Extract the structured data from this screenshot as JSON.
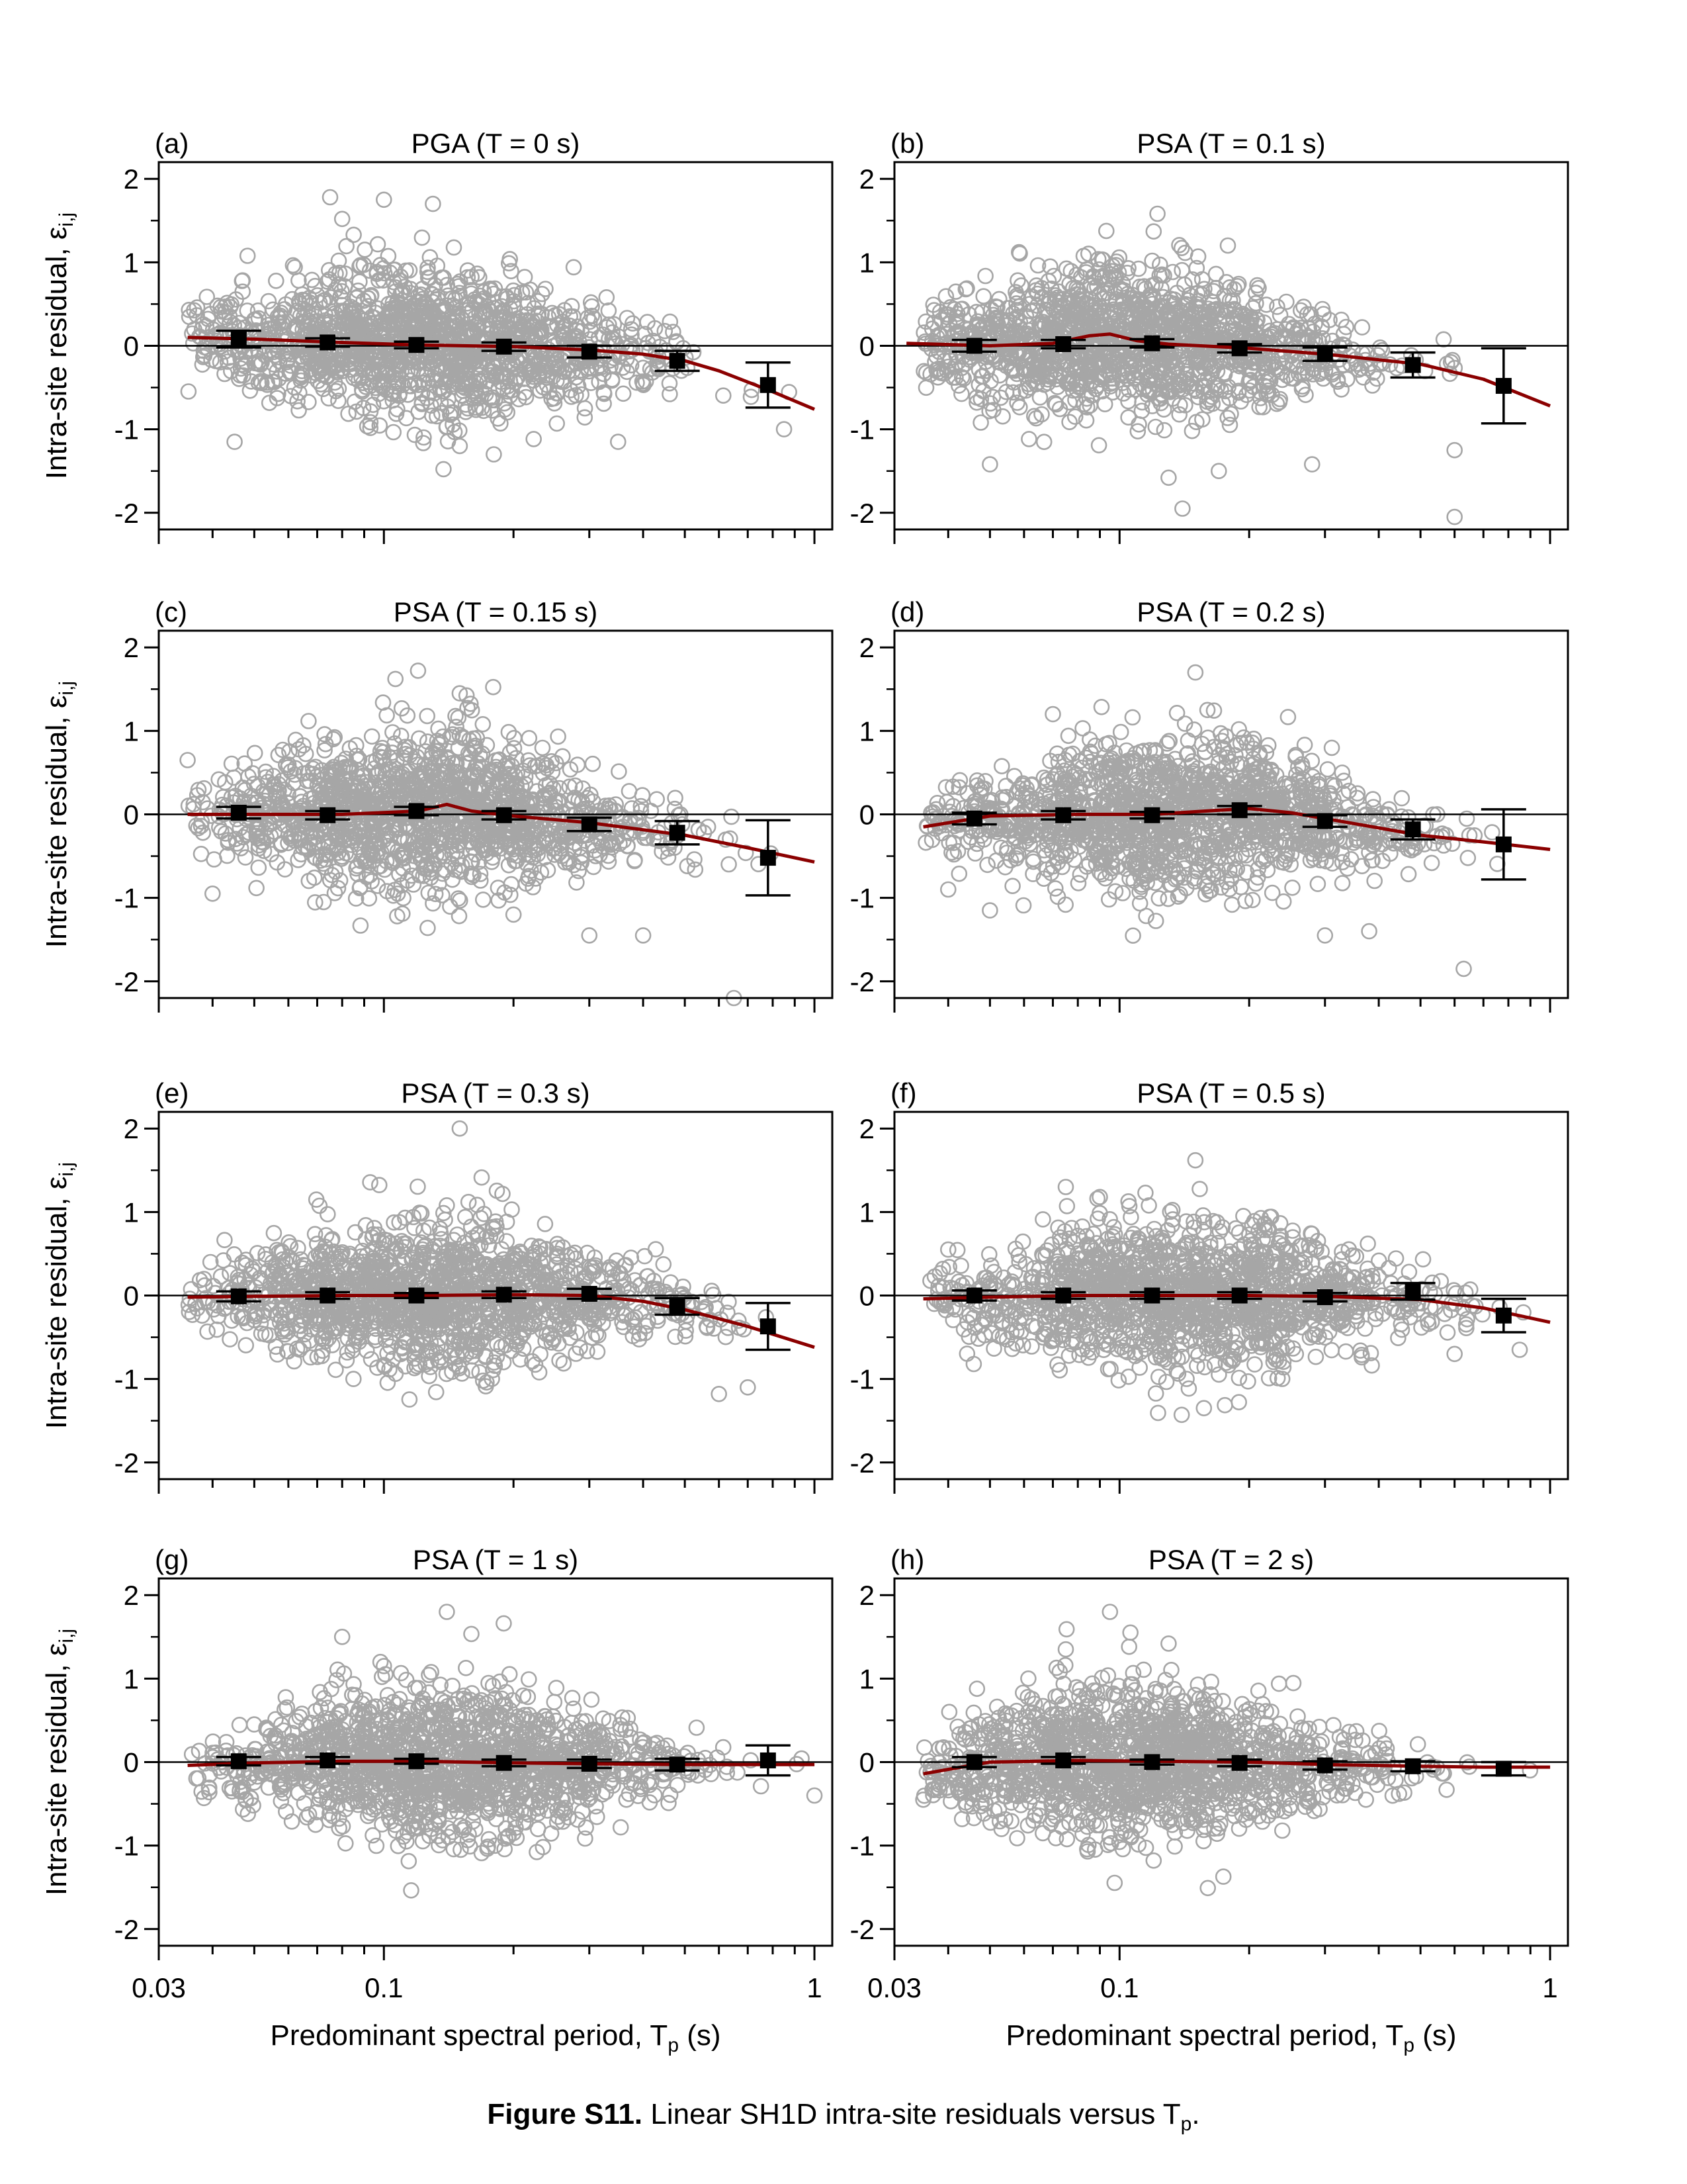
{
  "figure": {
    "caption_bold": "Figure S11.",
    "caption_text": " Linear SH1D intra-site residuals versus T",
    "caption_sub": "p",
    "caption_end": ".",
    "xlabel_main": "Predominant spectral period, T",
    "xlabel_sub": "p",
    "xlabel_unit": " (s)",
    "ylabel_main": "Intra-site residual, ε",
    "ylabel_sub": "i,j",
    "x_tick_labels": [
      "0.03",
      "0.1",
      "1"
    ],
    "y_tick_labels": [
      "-2",
      "-1",
      "0",
      "1",
      "2"
    ]
  },
  "colors": {
    "scatter": "#a6a6a6",
    "trend": "#8b0000",
    "binned": "#000000",
    "axes": "#000000"
  },
  "chart_data": [
    {
      "type": "scatter",
      "panel": "(a)",
      "title": "PGA (T = 0 s)",
      "xscale": "log",
      "xlim": [
        0.03,
        1.1
      ],
      "ylim": [
        -2.2,
        2.2
      ],
      "binned_mean": {
        "x": [
          0.046,
          0.074,
          0.119,
          0.19,
          0.3,
          0.48,
          0.78
        ],
        "y": [
          0.08,
          0.04,
          0.01,
          -0.01,
          -0.07,
          -0.18,
          -0.47
        ],
        "err": [
          0.1,
          0.05,
          0.04,
          0.05,
          0.07,
          0.12,
          0.27
        ]
      },
      "trend": {
        "x": [
          0.035,
          0.05,
          0.08,
          0.12,
          0.2,
          0.3,
          0.4,
          0.5,
          0.6,
          0.8,
          1.0
        ],
        "y": [
          0.1,
          0.08,
          0.04,
          0.01,
          -0.01,
          -0.05,
          -0.1,
          -0.18,
          -0.3,
          -0.55,
          -0.76
        ]
      },
      "spread": {
        "xmin": 0.035,
        "xmax": 1.0,
        "center": 0.12,
        "outliers": [
          [
            0.075,
            1.78
          ],
          [
            0.1,
            1.75
          ],
          [
            0.13,
            1.7
          ],
          [
            0.08,
            1.52
          ],
          [
            0.045,
            -1.15
          ],
          [
            0.15,
            -1.2
          ],
          [
            0.18,
            -1.3
          ],
          [
            0.35,
            -1.15
          ],
          [
            0.85,
            -1.0
          ]
        ]
      }
    },
    {
      "type": "scatter",
      "panel": "(b)",
      "title": "PSA (T = 0.1 s)",
      "xscale": "log",
      "xlim": [
        0.03,
        1.1
      ],
      "ylim": [
        -2.2,
        2.2
      ],
      "binned_mean": {
        "x": [
          0.046,
          0.074,
          0.119,
          0.19,
          0.3,
          0.48,
          0.78
        ],
        "y": [
          0.0,
          0.02,
          0.03,
          -0.03,
          -0.1,
          -0.23,
          -0.48
        ],
        "err": [
          0.07,
          0.05,
          0.05,
          0.05,
          0.08,
          0.15,
          0.45
        ]
      },
      "trend": {
        "x": [
          0.032,
          0.05,
          0.07,
          0.085,
          0.095,
          0.11,
          0.13,
          0.2,
          0.3,
          0.5,
          0.7,
          1.0
        ],
        "y": [
          0.03,
          0.0,
          0.03,
          0.12,
          0.14,
          0.06,
          0.02,
          -0.03,
          -0.1,
          -0.22,
          -0.4,
          -0.72
        ]
      },
      "spread": {
        "xmin": 0.035,
        "xmax": 1.0,
        "center": 0.1,
        "outliers": [
          [
            0.12,
            1.37
          ],
          [
            0.13,
            -1.58
          ],
          [
            0.14,
            -1.95
          ],
          [
            0.17,
            -1.5
          ],
          [
            0.28,
            -1.42
          ],
          [
            0.6,
            -2.05
          ],
          [
            0.6,
            -1.25
          ],
          [
            0.05,
            -1.42
          ]
        ]
      }
    },
    {
      "type": "scatter",
      "panel": "(c)",
      "title": "PSA (T = 0.15 s)",
      "xscale": "log",
      "xlim": [
        0.03,
        1.1
      ],
      "ylim": [
        -2.2,
        2.2
      ],
      "binned_mean": {
        "x": [
          0.046,
          0.074,
          0.119,
          0.19,
          0.3,
          0.48,
          0.78
        ],
        "y": [
          0.02,
          -0.01,
          0.04,
          -0.01,
          -0.12,
          -0.22,
          -0.52
        ],
        "err": [
          0.07,
          0.05,
          0.05,
          0.05,
          0.08,
          0.14,
          0.45
        ]
      },
      "trend": {
        "x": [
          0.035,
          0.05,
          0.08,
          0.12,
          0.14,
          0.16,
          0.2,
          0.3,
          0.5,
          0.7,
          1.0
        ],
        "y": [
          0.0,
          0.0,
          0.0,
          0.04,
          0.12,
          0.04,
          -0.02,
          -0.1,
          -0.25,
          -0.4,
          -0.57
        ]
      },
      "spread": {
        "xmin": 0.035,
        "xmax": 1.0,
        "center": 0.12,
        "outliers": [
          [
            0.15,
            1.45
          ],
          [
            0.11,
            1.27
          ],
          [
            0.035,
            0.65
          ],
          [
            0.2,
            -1.2
          ],
          [
            0.3,
            -1.45
          ],
          [
            0.4,
            -1.45
          ],
          [
            0.65,
            -2.2
          ],
          [
            0.04,
            -0.95
          ]
        ]
      }
    },
    {
      "type": "scatter",
      "panel": "(d)",
      "title": "PSA (T = 0.2 s)",
      "xscale": "log",
      "xlim": [
        0.03,
        1.1
      ],
      "ylim": [
        -2.2,
        2.2
      ],
      "binned_mean": {
        "x": [
          0.046,
          0.074,
          0.119,
          0.19,
          0.3,
          0.48,
          0.78
        ],
        "y": [
          -0.05,
          -0.01,
          -0.01,
          0.05,
          -0.08,
          -0.18,
          -0.36
        ],
        "err": [
          0.07,
          0.05,
          0.04,
          0.05,
          0.07,
          0.12,
          0.42
        ]
      },
      "trend": {
        "x": [
          0.035,
          0.05,
          0.08,
          0.12,
          0.17,
          0.2,
          0.25,
          0.3,
          0.5,
          0.7,
          1.0
        ],
        "y": [
          -0.15,
          -0.02,
          0.0,
          0.0,
          0.05,
          0.07,
          0.02,
          -0.05,
          -0.25,
          -0.33,
          -0.42
        ]
      },
      "spread": {
        "xmin": 0.035,
        "xmax": 1.0,
        "center": 0.13,
        "outliers": [
          [
            0.15,
            1.7
          ],
          [
            0.07,
            1.2
          ],
          [
            0.16,
            1.25
          ],
          [
            0.63,
            -1.85
          ],
          [
            0.3,
            -1.45
          ],
          [
            0.38,
            -1.4
          ],
          [
            0.04,
            -0.9
          ],
          [
            0.05,
            -1.15
          ]
        ]
      }
    },
    {
      "type": "scatter",
      "panel": "(e)",
      "title": "PSA (T = 0.3 s)",
      "xscale": "log",
      "xlim": [
        0.03,
        1.1
      ],
      "ylim": [
        -2.2,
        2.2
      ],
      "binned_mean": {
        "x": [
          0.046,
          0.074,
          0.119,
          0.19,
          0.3,
          0.48,
          0.78
        ],
        "y": [
          -0.01,
          0.0,
          0.0,
          0.01,
          0.02,
          -0.13,
          -0.37
        ],
        "err": [
          0.06,
          0.04,
          0.03,
          0.04,
          0.06,
          0.1,
          0.28
        ]
      },
      "trend": {
        "x": [
          0.035,
          0.05,
          0.08,
          0.12,
          0.2,
          0.3,
          0.4,
          0.5,
          0.7,
          1.0
        ],
        "y": [
          -0.02,
          -0.01,
          0.0,
          0.0,
          0.01,
          0.0,
          -0.07,
          -0.17,
          -0.37,
          -0.62
        ]
      },
      "spread": {
        "xmin": 0.035,
        "xmax": 1.0,
        "center": 0.13,
        "outliers": [
          [
            0.15,
            2.0
          ],
          [
            0.14,
            1.08
          ],
          [
            0.085,
            -1.0
          ],
          [
            0.6,
            -1.18
          ],
          [
            0.7,
            -1.1
          ],
          [
            0.17,
            -1.02
          ]
        ]
      }
    },
    {
      "type": "scatter",
      "panel": "(f)",
      "title": "PSA (T = 0.5 s)",
      "xscale": "log",
      "xlim": [
        0.03,
        1.1
      ],
      "ylim": [
        -2.2,
        2.2
      ],
      "binned_mean": {
        "x": [
          0.046,
          0.074,
          0.119,
          0.19,
          0.3,
          0.48,
          0.78
        ],
        "y": [
          0.0,
          0.0,
          0.0,
          0.0,
          -0.02,
          0.05,
          -0.24
        ],
        "err": [
          0.06,
          0.04,
          0.04,
          0.04,
          0.05,
          0.1,
          0.2
        ]
      },
      "trend": {
        "x": [
          0.035,
          0.05,
          0.08,
          0.12,
          0.2,
          0.3,
          0.5,
          0.7,
          1.0
        ],
        "y": [
          -0.04,
          -0.02,
          0.0,
          0.0,
          0.0,
          -0.01,
          -0.05,
          -0.15,
          -0.32
        ]
      },
      "spread": {
        "xmin": 0.035,
        "xmax": 1.0,
        "center": 0.14,
        "outliers": [
          [
            0.15,
            1.62
          ],
          [
            0.075,
            1.3
          ],
          [
            0.09,
            1.18
          ],
          [
            0.04,
            0.55
          ],
          [
            0.85,
            -0.65
          ],
          [
            0.6,
            -0.7
          ]
        ]
      }
    },
    {
      "type": "scatter",
      "panel": "(g)",
      "title": "PSA (T = 1 s)",
      "xscale": "log",
      "xlim": [
        0.03,
        1.1
      ],
      "ylim": [
        -2.2,
        2.2
      ],
      "binned_mean": {
        "x": [
          0.046,
          0.074,
          0.119,
          0.19,
          0.3,
          0.48,
          0.78
        ],
        "y": [
          0.01,
          0.02,
          0.01,
          -0.01,
          -0.02,
          -0.03,
          0.02
        ],
        "err": [
          0.05,
          0.04,
          0.03,
          0.04,
          0.05,
          0.07,
          0.18
        ]
      },
      "trend": {
        "x": [
          0.035,
          0.05,
          0.08,
          0.12,
          0.2,
          0.3,
          0.5,
          0.7,
          1.0
        ],
        "y": [
          -0.04,
          -0.01,
          0.01,
          0.01,
          -0.01,
          -0.02,
          -0.03,
          -0.03,
          -0.03
        ]
      },
      "spread": {
        "xmin": 0.035,
        "xmax": 1.0,
        "center": 0.14,
        "outliers": [
          [
            0.14,
            1.8
          ],
          [
            0.08,
            1.5
          ],
          [
            0.1,
            1.15
          ],
          [
            0.2,
            -0.85
          ],
          [
            1.0,
            -0.4
          ]
        ]
      }
    },
    {
      "type": "scatter",
      "panel": "(h)",
      "title": "PSA (T = 2 s)",
      "xscale": "log",
      "xlim": [
        0.03,
        1.1
      ],
      "ylim": [
        -2.2,
        2.2
      ],
      "binned_mean": {
        "x": [
          0.046,
          0.074,
          0.119,
          0.19,
          0.3,
          0.48,
          0.78
        ],
        "y": [
          0.0,
          0.02,
          0.0,
          -0.01,
          -0.04,
          -0.05,
          -0.08
        ],
        "err": [
          0.06,
          0.04,
          0.03,
          0.04,
          0.05,
          0.06,
          0.08
        ]
      },
      "trend": {
        "x": [
          0.035,
          0.05,
          0.08,
          0.12,
          0.2,
          0.3,
          0.5,
          0.7,
          1.0
        ],
        "y": [
          -0.14,
          0.0,
          0.02,
          0.01,
          0.0,
          -0.03,
          -0.05,
          -0.06,
          -0.06
        ]
      },
      "spread": {
        "xmin": 0.035,
        "xmax": 1.0,
        "center": 0.11,
        "outliers": [
          [
            0.095,
            1.8
          ],
          [
            0.075,
            1.35
          ],
          [
            0.13,
            1.42
          ],
          [
            0.12,
            -1.18
          ],
          [
            0.035,
            -0.45
          ]
        ]
      }
    }
  ]
}
